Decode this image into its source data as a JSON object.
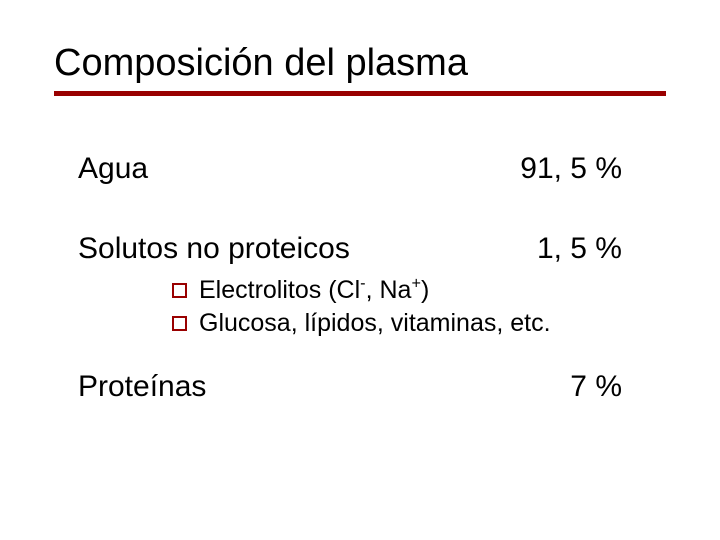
{
  "slide": {
    "title": "Composición del plasma",
    "rule_color": "#990000",
    "bullet_border_color": "#990000",
    "background_color": "#ffffff",
    "text_color": "#000000",
    "title_fontsize": 38,
    "body_fontsize": 30,
    "sub_fontsize": 25,
    "items": [
      {
        "label": "Agua",
        "value": "91, 5 %"
      },
      {
        "label": "Solutos no proteicos",
        "value": "1, 5 %",
        "sub": [
          {
            "html": "Electrolitos (Cl<sup>-</sup>, Na<sup>+</sup>)"
          },
          {
            "html": "Glucosa, lípidos, vitaminas, etc."
          }
        ]
      },
      {
        "label": "Proteínas",
        "value": "7 %"
      }
    ]
  }
}
